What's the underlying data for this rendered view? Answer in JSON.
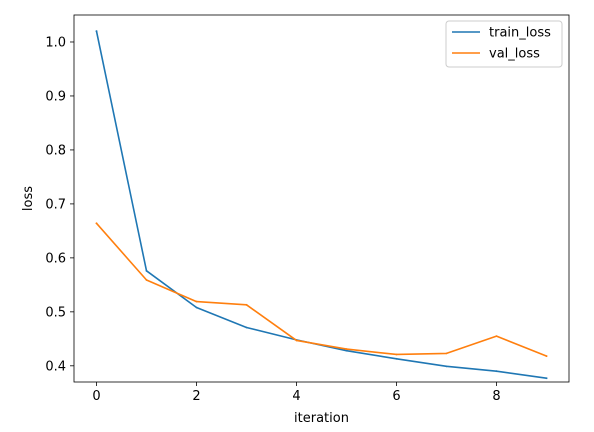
{
  "chart_data": {
    "type": "line",
    "xlabel": "iteration",
    "ylabel": "loss",
    "xlim": [
      -0.45,
      9.45
    ],
    "ylim": [
      0.37,
      1.05
    ],
    "xticks": [
      0,
      2,
      4,
      6,
      8
    ],
    "yticks": [
      0.4,
      0.5,
      0.6,
      0.7,
      0.8,
      0.9,
      1.0
    ],
    "xtick_labels": [
      "0",
      "2",
      "4",
      "6",
      "8"
    ],
    "ytick_labels": [
      "0.4",
      "0.5",
      "0.6",
      "0.7",
      "0.8",
      "0.9",
      "1.0"
    ],
    "grid": false,
    "legend_position": "top-right",
    "x": [
      0,
      1,
      2,
      3,
      4,
      5,
      6,
      7,
      8,
      9
    ],
    "series": [
      {
        "name": "train_loss",
        "color": "#1f77b4",
        "values": [
          1.02,
          0.576,
          0.508,
          0.471,
          0.448,
          0.428,
          0.413,
          0.399,
          0.39,
          0.377
        ]
      },
      {
        "name": "val_loss",
        "color": "#ff7f0e",
        "values": [
          0.664,
          0.559,
          0.519,
          0.513,
          0.447,
          0.431,
          0.421,
          0.423,
          0.455,
          0.418
        ]
      }
    ]
  }
}
